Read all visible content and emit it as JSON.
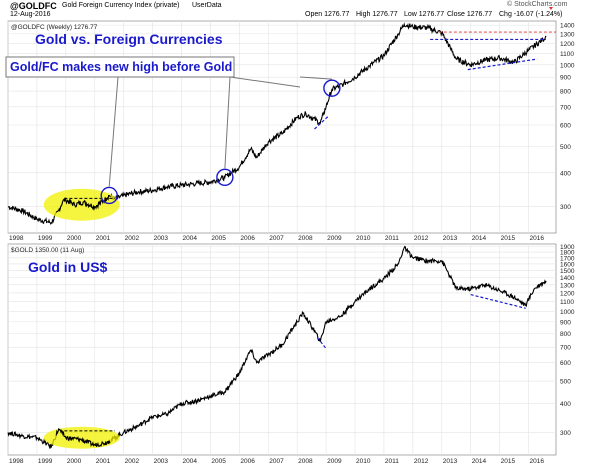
{
  "header": {
    "symbol": "@GOLDFC",
    "name": "Gold Foreign Currency Index (private)",
    "source": "UserData",
    "date": "12-Aug-2016",
    "watermark": "© StockCharts.com",
    "open": "Open 1276.77",
    "high": "High 1276.77",
    "low": "Low 1276.77",
    "close": "Close 1276.77",
    "chg": "Chg -16.07 (-1.24%)"
  },
  "colors": {
    "line": "#000000",
    "annotation_blue": "#1a1acc",
    "highlight_yellow": "#f2f200",
    "resistance_red": "#e03030",
    "grid": "#e3e3e3",
    "border": "#8a8a8a"
  },
  "chart_data": [
    {
      "type": "line",
      "series_label": "@GOLDFC (Weekly) 1276.77",
      "title": "Gold vs. Foreign Currencies",
      "annotation": "Gold/FC makes new high before Gold",
      "scale": "log",
      "ylim": [
        240,
        1450
      ],
      "y_ticks": [
        300,
        400,
        500,
        600,
        700,
        800,
        900,
        1000,
        1100,
        1200,
        1300,
        1400
      ],
      "x_ticks": [
        "1998",
        "1999",
        "2000",
        "2001",
        "2002",
        "2003",
        "2004",
        "2005",
        "2006",
        "2007",
        "2008",
        "2009",
        "2010",
        "2011",
        "2012",
        "2013",
        "2014",
        "2015",
        "2016"
      ],
      "x": [
        1998.0,
        1998.5,
        1999.0,
        1999.5,
        1999.75,
        1999.9,
        2000.0,
        2000.3,
        2000.6,
        2001.0,
        2001.3,
        2001.5,
        2001.7,
        2002.0,
        2002.5,
        2003.0,
        2003.5,
        2004.0,
        2004.5,
        2005.0,
        2005.5,
        2006.0,
        2006.4,
        2006.6,
        2007.0,
        2007.5,
        2008.0,
        2008.3,
        2008.8,
        2009.0,
        2009.2,
        2009.6,
        2010.0,
        2010.5,
        2011.0,
        2011.5,
        2011.7,
        2012.0,
        2012.5,
        2013.0,
        2013.3,
        2013.5,
        2014.0,
        2014.5,
        2015.0,
        2015.5,
        2016.0,
        2016.5,
        2016.61
      ],
      "y": [
        300,
        290,
        270,
        262,
        290,
        315,
        318,
        305,
        312,
        300,
        315,
        330,
        320,
        330,
        340,
        345,
        355,
        360,
        365,
        370,
        385,
        420,
        490,
        455,
        520,
        560,
        640,
        660,
        610,
        700,
        810,
        850,
        900,
        990,
        1080,
        1300,
        1410,
        1380,
        1370,
        1310,
        1150,
        1050,
        1000,
        1040,
        1060,
        1020,
        1130,
        1240,
        1276.77
      ]
    },
    {
      "type": "line",
      "series_label": "$GOLD 1350.00 (11 Aug)",
      "title": "Gold in US$",
      "scale": "log",
      "ylim": [
        240,
        1950
      ],
      "y_ticks": [
        300,
        400,
        500,
        600,
        700,
        800,
        900,
        1000,
        1100,
        1200,
        1300,
        1400,
        1500,
        1600,
        1700,
        1800,
        1900
      ],
      "x_ticks": [
        "1998",
        "1999",
        "2000",
        "2001",
        "2002",
        "2003",
        "2004",
        "2005",
        "2006",
        "2007",
        "2008",
        "2009",
        "2010",
        "2011",
        "2012",
        "2013",
        "2014",
        "2015",
        "2016"
      ],
      "x": [
        1998.0,
        1998.5,
        1999.0,
        1999.5,
        1999.75,
        1999.9,
        2000.0,
        2000.5,
        2001.0,
        2001.3,
        2001.5,
        2002.0,
        2002.5,
        2003.0,
        2003.5,
        2004.0,
        2004.5,
        2005.0,
        2005.5,
        2006.0,
        2006.4,
        2006.6,
        2007.0,
        2007.5,
        2008.0,
        2008.2,
        2008.8,
        2009.0,
        2009.5,
        2010.0,
        2010.5,
        2011.0,
        2011.5,
        2011.7,
        2012.0,
        2012.5,
        2013.0,
        2013.3,
        2013.5,
        2014.0,
        2014.5,
        2015.0,
        2015.5,
        2015.9,
        2016.2,
        2016.5,
        2016.61
      ],
      "y": [
        300,
        290,
        285,
        260,
        310,
        295,
        285,
        280,
        265,
        270,
        275,
        300,
        320,
        350,
        360,
        400,
        410,
        430,
        450,
        540,
        680,
        600,
        650,
        720,
        900,
        980,
        740,
        900,
        950,
        1100,
        1250,
        1380,
        1600,
        1880,
        1700,
        1650,
        1650,
        1400,
        1250,
        1250,
        1300,
        1230,
        1150,
        1060,
        1250,
        1330,
        1350
      ]
    }
  ]
}
